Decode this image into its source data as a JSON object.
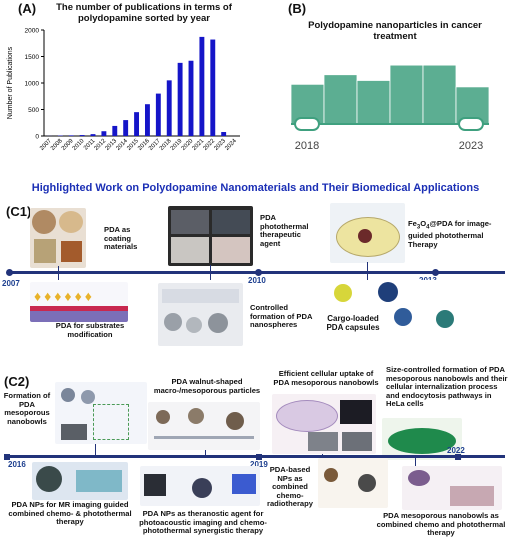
{
  "panel_a": {
    "label": "(A)",
    "title": "The number of publications in terms of polydopamine sorted by year",
    "chart_data": {
      "type": "bar",
      "title": "The number of publications in terms of polydopamine sorted by year",
      "xlabel": "",
      "ylabel": "Number of Publications",
      "categories": [
        "2007",
        "2008",
        "2009",
        "2010",
        "2011",
        "2012",
        "2013",
        "2014",
        "2015",
        "2016",
        "2017",
        "2018",
        "2019",
        "2020",
        "2021",
        "2022",
        "2023",
        "2024"
      ],
      "values": [
        2,
        8,
        12,
        18,
        35,
        90,
        190,
        300,
        450,
        600,
        800,
        1050,
        1380,
        1420,
        1870,
        1820,
        75,
        0
      ],
      "ylim": [
        0,
        2000
      ],
      "yticks": [
        0,
        500,
        1000,
        1500,
        2000
      ],
      "bar_color": "#1515c8"
    }
  },
  "panel_b": {
    "label": "(B)",
    "title": "Polydopamine nanoparticles in cancer treatment",
    "year_start": "2018",
    "year_end": "2023",
    "bar_levels": [
      0.62,
      0.77,
      0.68,
      0.92,
      0.92,
      0.58
    ],
    "color": "#3fa07f"
  },
  "headline": "Highlighted Work on Polydopamine Nanomaterials and Their Biomedical Applications",
  "panel_c1": {
    "label": "(C1)",
    "years": [
      "2007",
      "2010",
      "2013"
    ],
    "items": {
      "coating": "PDA as coating materials",
      "photothermal": "PDA photothermal therapeutic agent",
      "fe3o4_pre": "Fe",
      "fe3o4_sub1": "3",
      "fe3o4_mid": "O",
      "fe3o4_sub2": "4",
      "fe3o4_post": "@PDA for image-guided photothermal Therapy",
      "substrates": "PDA for substrates modification",
      "nanospheres": "Controlled formation of PDA nanospheres",
      "cargo": "Cargo-loaded PDA capsules"
    }
  },
  "panel_c2": {
    "label": "(C2)",
    "years": [
      "2016",
      "2019",
      "2022"
    ],
    "items": {
      "nanobowls": "Formation of PDA mesoporous nanobowls",
      "walnut": "PDA walnut-shaped macro-/mesoporous particles",
      "uptake": "Efficient cellular uptake of PDA mesoporous nanobowls",
      "size_controlled": "Size-controlled formation of PDA mesoporous nanobowls and their cellular internalization process and endocytosis pathways in HeLa cells",
      "mr_imaging": "PDA NPs for MR imaging guided combined chemo- & photothermal therapy",
      "theranostic": "PDA NPs as theranostic agent for photoacoustic imaging and chemo-photothermal synergistic therapy",
      "chemo_radio": "PDA-based NPs as combined chemo-radiotherapy",
      "combined": "PDA mesoporous nanobowls as combined chemo and photothermal therapy"
    }
  }
}
